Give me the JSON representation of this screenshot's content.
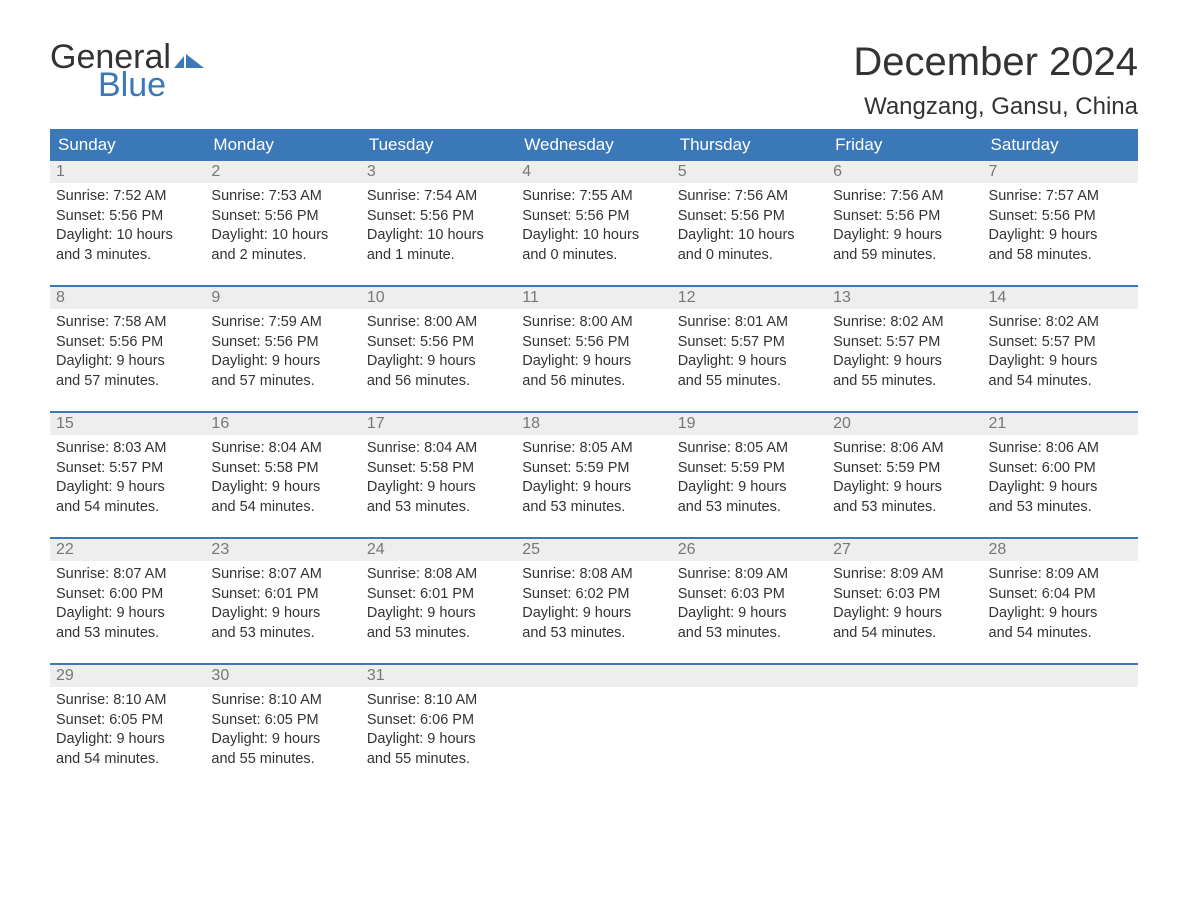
{
  "logo": {
    "text_general": "General",
    "text_blue": "Blue",
    "general_color": "#333333",
    "blue_color": "#3b78b8",
    "flag_color": "#3b78b8"
  },
  "title": "December 2024",
  "location": "Wangzang, Gansu, China",
  "colors": {
    "header_bg": "#3b78b8",
    "header_text": "#ffffff",
    "daynum_bg": "#eeeeee",
    "daynum_text": "#777777",
    "body_text": "#333333",
    "week_border": "#3b78b8",
    "page_bg": "#ffffff"
  },
  "day_headers": [
    "Sunday",
    "Monday",
    "Tuesday",
    "Wednesday",
    "Thursday",
    "Friday",
    "Saturday"
  ],
  "weeks": [
    [
      {
        "n": "1",
        "sunrise": "Sunrise: 7:52 AM",
        "sunset": "Sunset: 5:56 PM",
        "d1": "Daylight: 10 hours",
        "d2": "and 3 minutes."
      },
      {
        "n": "2",
        "sunrise": "Sunrise: 7:53 AM",
        "sunset": "Sunset: 5:56 PM",
        "d1": "Daylight: 10 hours",
        "d2": "and 2 minutes."
      },
      {
        "n": "3",
        "sunrise": "Sunrise: 7:54 AM",
        "sunset": "Sunset: 5:56 PM",
        "d1": "Daylight: 10 hours",
        "d2": "and 1 minute."
      },
      {
        "n": "4",
        "sunrise": "Sunrise: 7:55 AM",
        "sunset": "Sunset: 5:56 PM",
        "d1": "Daylight: 10 hours",
        "d2": "and 0 minutes."
      },
      {
        "n": "5",
        "sunrise": "Sunrise: 7:56 AM",
        "sunset": "Sunset: 5:56 PM",
        "d1": "Daylight: 10 hours",
        "d2": "and 0 minutes."
      },
      {
        "n": "6",
        "sunrise": "Sunrise: 7:56 AM",
        "sunset": "Sunset: 5:56 PM",
        "d1": "Daylight: 9 hours",
        "d2": "and 59 minutes."
      },
      {
        "n": "7",
        "sunrise": "Sunrise: 7:57 AM",
        "sunset": "Sunset: 5:56 PM",
        "d1": "Daylight: 9 hours",
        "d2": "and 58 minutes."
      }
    ],
    [
      {
        "n": "8",
        "sunrise": "Sunrise: 7:58 AM",
        "sunset": "Sunset: 5:56 PM",
        "d1": "Daylight: 9 hours",
        "d2": "and 57 minutes."
      },
      {
        "n": "9",
        "sunrise": "Sunrise: 7:59 AM",
        "sunset": "Sunset: 5:56 PM",
        "d1": "Daylight: 9 hours",
        "d2": "and 57 minutes."
      },
      {
        "n": "10",
        "sunrise": "Sunrise: 8:00 AM",
        "sunset": "Sunset: 5:56 PM",
        "d1": "Daylight: 9 hours",
        "d2": "and 56 minutes."
      },
      {
        "n": "11",
        "sunrise": "Sunrise: 8:00 AM",
        "sunset": "Sunset: 5:56 PM",
        "d1": "Daylight: 9 hours",
        "d2": "and 56 minutes."
      },
      {
        "n": "12",
        "sunrise": "Sunrise: 8:01 AM",
        "sunset": "Sunset: 5:57 PM",
        "d1": "Daylight: 9 hours",
        "d2": "and 55 minutes."
      },
      {
        "n": "13",
        "sunrise": "Sunrise: 8:02 AM",
        "sunset": "Sunset: 5:57 PM",
        "d1": "Daylight: 9 hours",
        "d2": "and 55 minutes."
      },
      {
        "n": "14",
        "sunrise": "Sunrise: 8:02 AM",
        "sunset": "Sunset: 5:57 PM",
        "d1": "Daylight: 9 hours",
        "d2": "and 54 minutes."
      }
    ],
    [
      {
        "n": "15",
        "sunrise": "Sunrise: 8:03 AM",
        "sunset": "Sunset: 5:57 PM",
        "d1": "Daylight: 9 hours",
        "d2": "and 54 minutes."
      },
      {
        "n": "16",
        "sunrise": "Sunrise: 8:04 AM",
        "sunset": "Sunset: 5:58 PM",
        "d1": "Daylight: 9 hours",
        "d2": "and 54 minutes."
      },
      {
        "n": "17",
        "sunrise": "Sunrise: 8:04 AM",
        "sunset": "Sunset: 5:58 PM",
        "d1": "Daylight: 9 hours",
        "d2": "and 53 minutes."
      },
      {
        "n": "18",
        "sunrise": "Sunrise: 8:05 AM",
        "sunset": "Sunset: 5:59 PM",
        "d1": "Daylight: 9 hours",
        "d2": "and 53 minutes."
      },
      {
        "n": "19",
        "sunrise": "Sunrise: 8:05 AM",
        "sunset": "Sunset: 5:59 PM",
        "d1": "Daylight: 9 hours",
        "d2": "and 53 minutes."
      },
      {
        "n": "20",
        "sunrise": "Sunrise: 8:06 AM",
        "sunset": "Sunset: 5:59 PM",
        "d1": "Daylight: 9 hours",
        "d2": "and 53 minutes."
      },
      {
        "n": "21",
        "sunrise": "Sunrise: 8:06 AM",
        "sunset": "Sunset: 6:00 PM",
        "d1": "Daylight: 9 hours",
        "d2": "and 53 minutes."
      }
    ],
    [
      {
        "n": "22",
        "sunrise": "Sunrise: 8:07 AM",
        "sunset": "Sunset: 6:00 PM",
        "d1": "Daylight: 9 hours",
        "d2": "and 53 minutes."
      },
      {
        "n": "23",
        "sunrise": "Sunrise: 8:07 AM",
        "sunset": "Sunset: 6:01 PM",
        "d1": "Daylight: 9 hours",
        "d2": "and 53 minutes."
      },
      {
        "n": "24",
        "sunrise": "Sunrise: 8:08 AM",
        "sunset": "Sunset: 6:01 PM",
        "d1": "Daylight: 9 hours",
        "d2": "and 53 minutes."
      },
      {
        "n": "25",
        "sunrise": "Sunrise: 8:08 AM",
        "sunset": "Sunset: 6:02 PM",
        "d1": "Daylight: 9 hours",
        "d2": "and 53 minutes."
      },
      {
        "n": "26",
        "sunrise": "Sunrise: 8:09 AM",
        "sunset": "Sunset: 6:03 PM",
        "d1": "Daylight: 9 hours",
        "d2": "and 53 minutes."
      },
      {
        "n": "27",
        "sunrise": "Sunrise: 8:09 AM",
        "sunset": "Sunset: 6:03 PM",
        "d1": "Daylight: 9 hours",
        "d2": "and 54 minutes."
      },
      {
        "n": "28",
        "sunrise": "Sunrise: 8:09 AM",
        "sunset": "Sunset: 6:04 PM",
        "d1": "Daylight: 9 hours",
        "d2": "and 54 minutes."
      }
    ],
    [
      {
        "n": "29",
        "sunrise": "Sunrise: 8:10 AM",
        "sunset": "Sunset: 6:05 PM",
        "d1": "Daylight: 9 hours",
        "d2": "and 54 minutes."
      },
      {
        "n": "30",
        "sunrise": "Sunrise: 8:10 AM",
        "sunset": "Sunset: 6:05 PM",
        "d1": "Daylight: 9 hours",
        "d2": "and 55 minutes."
      },
      {
        "n": "31",
        "sunrise": "Sunrise: 8:10 AM",
        "sunset": "Sunset: 6:06 PM",
        "d1": "Daylight: 9 hours",
        "d2": "and 55 minutes."
      },
      null,
      null,
      null,
      null
    ]
  ]
}
